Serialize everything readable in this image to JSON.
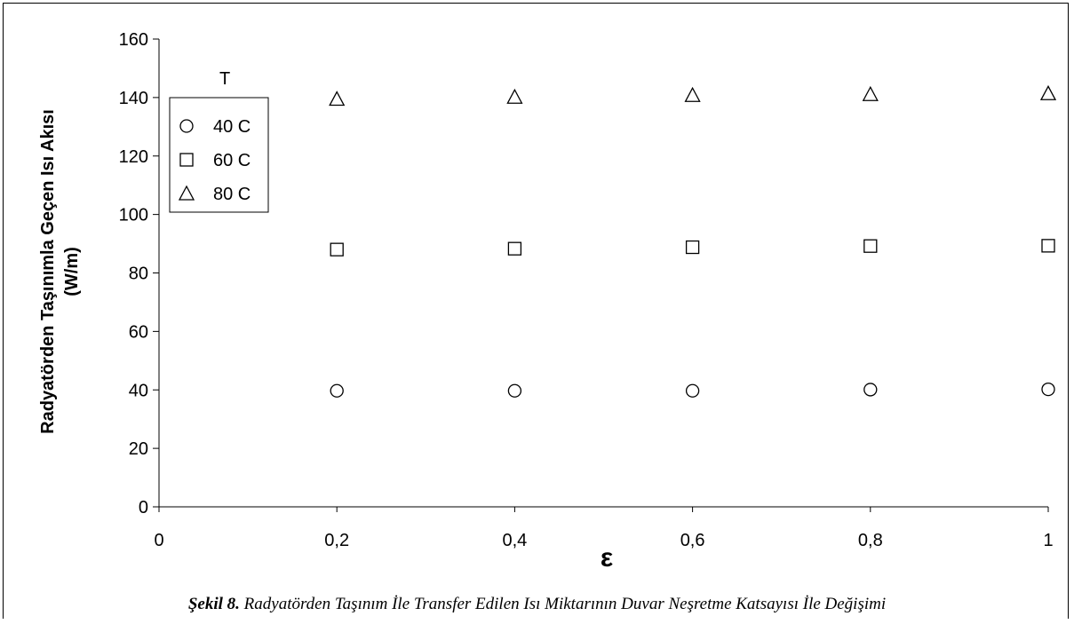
{
  "caption": {
    "label": "Şekil 8.",
    "text": "Radyatörden Taşınım İle Transfer Edilen Isı Miktarının Duvar Neşretme Katsayısı İle Değişimi"
  },
  "chart_data": {
    "type": "scatter",
    "title": "",
    "xlabel": "ε",
    "ylabel_line1": "Radyatörden Taşınımla Geçen Isı Akısı",
    "ylabel_line2": "(W/m)",
    "xlim": [
      0,
      1
    ],
    "ylim": [
      0,
      160
    ],
    "x_ticks": [
      "0",
      "0,2",
      "0,4",
      "0,6",
      "0,8",
      "1"
    ],
    "x_tick_values": [
      0,
      0.2,
      0.4,
      0.6,
      0.8,
      1
    ],
    "y_ticks": [
      "0",
      "20",
      "40",
      "60",
      "80",
      "100",
      "120",
      "140",
      "160"
    ],
    "y_tick_values": [
      0,
      20,
      40,
      60,
      80,
      100,
      120,
      140,
      160
    ],
    "grid": false,
    "legend_title": "T",
    "legend_position": "top-left",
    "x": [
      0.2,
      0.4,
      0.6,
      0.8,
      1.0
    ],
    "series": [
      {
        "name": "40 C",
        "marker": "circle",
        "values": [
          39.7,
          39.7,
          39.7,
          40.1,
          40.2
        ]
      },
      {
        "name": "60 C",
        "marker": "square",
        "values": [
          88.0,
          88.3,
          88.8,
          89.2,
          89.3
        ]
      },
      {
        "name": "80 C",
        "marker": "triangle",
        "values": [
          139.5,
          140.2,
          140.8,
          141.1,
          141.4
        ]
      }
    ]
  }
}
